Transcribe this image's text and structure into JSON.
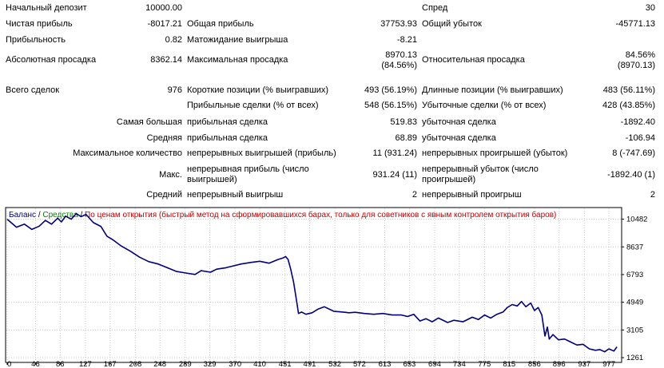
{
  "report": {
    "initial_deposit": {
      "label": "Начальный депозит",
      "value": "10000.00"
    },
    "spread": {
      "label": "Спред",
      "value": "30"
    },
    "net_profit": {
      "label": "Чистая прибыль",
      "value": "-8017.21"
    },
    "gross_profit": {
      "label": "Общая прибыль",
      "value": "37753.93"
    },
    "gross_loss": {
      "label": "Общий убыток",
      "value": "-45771.13"
    },
    "profit_factor": {
      "label": "Прибыльность",
      "value": "0.82"
    },
    "expected_payoff": {
      "label": "Матожидание выигрыша",
      "value": "-8.21"
    },
    "absolute_drawdown": {
      "label": "Абсолютная просадка",
      "value": "8362.14"
    },
    "maximal_drawdown": {
      "label": "Максимальная просадка",
      "value_line1": "8970.13",
      "value_line2": "(84.56%)"
    },
    "relative_drawdown": {
      "label": "Относительная просадка",
      "value_line1": "84.56%",
      "value_line2": "(8970.13)"
    },
    "total_trades": {
      "label": "Всего сделок",
      "value": "976"
    },
    "short_positions": {
      "label": "Короткие позиции (% выигравших)",
      "value": "493 (56.19%)"
    },
    "long_positions": {
      "label": "Длинные позиции (% выигравших)",
      "value": "483 (56.11%)"
    },
    "profit_trades": {
      "label": "Прибыльные сделки (% от всех)",
      "value": "548 (56.15%)"
    },
    "loss_trades": {
      "label": "Убыточные сделки (% от всех)",
      "value": "428 (43.85%)"
    },
    "largest": {
      "label": "Самая большая",
      "profit_label": "прибыльная сделка",
      "profit_value": "519.83",
      "loss_label": "убыточная сделка",
      "loss_value": "-1892.40"
    },
    "average": {
      "label": "Средняя",
      "profit_label": "прибыльная сделка",
      "profit_value": "68.89",
      "loss_label": "убыточная сделка",
      "loss_value": "-106.94"
    },
    "max_consecutive": {
      "label": "Максимальное количество",
      "wins_label": "непрерывных выигрышей (прибыль)",
      "wins_value": "11 (931.24)",
      "losses_label": "непрерывных проигрышей (убыток)",
      "losses_value": "8 (-747.69)"
    },
    "max_consecutive_amount": {
      "label": "Макс.",
      "profit_label": "непрерывная прибыль (число выигрышей)",
      "profit_value": "931.24 (11)",
      "loss_label": "непрерывный убыток (число проигрышей)",
      "loss_value": "-1892.40 (1)"
    },
    "avg_consecutive": {
      "label": "Средний",
      "wins_label": "непрерывный выигрыш",
      "wins_value": "2",
      "losses_label": "непрерывный проигрыш",
      "losses_value": "2"
    }
  },
  "chart_data": {
    "type": "line",
    "legend": {
      "balance": "Баланс",
      "separator1": " / ",
      "equity": "Средства",
      "separator2": " / ",
      "model": "По ценам открытия (быстрый метод на сформировавшихся барах, только для советников с явным контролем открытия баров)"
    },
    "colors": {
      "balance": "#000080",
      "equity": "#008000",
      "model": "#c00000",
      "grid": "#c8c8c8",
      "axis": "#000000"
    },
    "x_ticks": [
      0,
      46,
      86,
      127,
      167,
      208,
      248,
      289,
      329,
      370,
      410,
      451,
      491,
      532,
      572,
      613,
      653,
      694,
      734,
      775,
      815,
      856,
      896,
      937,
      977
    ],
    "y_ticks": [
      1261,
      3105,
      4949,
      6793,
      8637,
      10482
    ],
    "xlim": [
      0,
      995
    ],
    "ylim": [
      1050,
      11150
    ],
    "series": [
      {
        "values_x": [
          0,
          15,
          28,
          40,
          52,
          62,
          72,
          82,
          88,
          95,
          104,
          112,
          120,
          128,
          140,
          152,
          162,
          172,
          185,
          200,
          215,
          230,
          245,
          260,
          275,
          290,
          305,
          315,
          330,
          340,
          355,
          365,
          380,
          395,
          410,
          425,
          440,
          448,
          452,
          456,
          460,
          465,
          470,
          473,
          478,
          485,
          495,
          505,
          515,
          530,
          545,
          555,
          565,
          580,
          595,
          610,
          625,
          640,
          650,
          660,
          670,
          680,
          690,
          700,
          715,
          725,
          740,
          755,
          765,
          775,
          785,
          795,
          805,
          812,
          820,
          828,
          835,
          842,
          850,
          856,
          862,
          868,
          873,
          877,
          880,
          886,
          895,
          905,
          915,
          925,
          935,
          945,
          955,
          962,
          970,
          977,
          985,
          990
        ],
        "values_y": [
          10482,
          9950,
          10150,
          9800,
          10020,
          10400,
          10150,
          10550,
          10300,
          10680,
          10480,
          10850,
          10650,
          10800,
          10250,
          10000,
          9350,
          9100,
          8700,
          8350,
          7950,
          7650,
          7500,
          7250,
          7000,
          6900,
          6800,
          7050,
          6950,
          7150,
          7250,
          7350,
          7500,
          7600,
          7680,
          7550,
          7800,
          7900,
          8000,
          7800,
          7200,
          6300,
          5000,
          4200,
          4300,
          4150,
          4250,
          4500,
          4650,
          4350,
          4300,
          4250,
          4280,
          4200,
          4150,
          4200,
          4100,
          4100,
          4000,
          4150,
          3700,
          3850,
          3650,
          3900,
          3600,
          3750,
          3650,
          3950,
          3800,
          4100,
          3900,
          4150,
          4300,
          4600,
          4800,
          4700,
          5000,
          4650,
          4900,
          4400,
          4600,
          4100,
          2700,
          3300,
          2500,
          2800,
          2450,
          2500,
          2300,
          2100,
          2150,
          1850,
          1750,
          1800,
          1650,
          1850,
          1700,
          1980
        ]
      }
    ]
  }
}
